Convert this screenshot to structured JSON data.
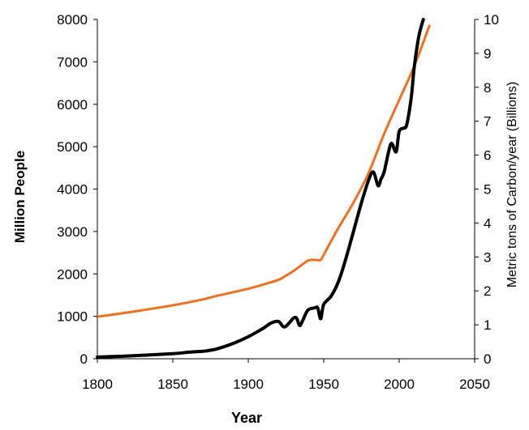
{
  "chart_data": {
    "type": "line",
    "title": "",
    "xlabel": "Year",
    "ylabel": "Million People",
    "y2label": "Metric tons of Carbon/year (Billions)",
    "xlim": [
      1800,
      2050
    ],
    "ylim": [
      0,
      8000
    ],
    "y2lim": [
      0,
      10
    ],
    "xticks": [
      "1800",
      "1850",
      "1900",
      "1950",
      "2000",
      "2050"
    ],
    "yticks": [
      "0",
      "1000",
      "2000",
      "3000",
      "4000",
      "5000",
      "6000",
      "7000",
      "8000"
    ],
    "y2ticks": [
      "0",
      "1",
      "2",
      "3",
      "4",
      "5",
      "6",
      "7",
      "8",
      "9",
      "10"
    ],
    "grid": false,
    "legend": "none",
    "series": [
      {
        "color": "#f07020",
        "axis": "left",
        "x": [
          1800,
          1820,
          1850,
          1870,
          1880,
          1900,
          1910,
          1920,
          1925,
          1930,
          1935,
          1940,
          1945,
          1948,
          1950,
          1955,
          1960,
          1970,
          1980,
          1990,
          2000,
          2010,
          2020
        ],
        "y": [
          990,
          1090,
          1260,
          1400,
          1490,
          1650,
          1750,
          1860,
          1960,
          2070,
          2200,
          2320,
          2330,
          2330,
          2450,
          2780,
          3100,
          3700,
          4400,
          5300,
          6100,
          6900,
          7850
        ]
      },
      {
        "color": "#000000",
        "axis": "right",
        "x": [
          1800,
          1820,
          1850,
          1860,
          1870,
          1875,
          1880,
          1890,
          1900,
          1910,
          1915,
          1920,
          1923,
          1925,
          1928,
          1930,
          1932,
          1934,
          1936,
          1938,
          1940,
          1944,
          1946,
          1948,
          1950,
          1955,
          1960,
          1965,
          1970,
          1975,
          1980,
          1983,
          1986,
          1988,
          1990,
          1993,
          1995,
          1998,
          2000,
          2003,
          2005,
          2008,
          2010,
          2013,
          2016
        ],
        "y": [
          0.05,
          0.08,
          0.15,
          0.19,
          0.22,
          0.25,
          0.3,
          0.45,
          0.65,
          0.9,
          1.05,
          1.1,
          0.95,
          0.96,
          1.1,
          1.2,
          1.2,
          0.98,
          1.12,
          1.32,
          1.45,
          1.5,
          1.5,
          1.18,
          1.6,
          1.85,
          2.3,
          3.0,
          3.8,
          4.6,
          5.3,
          5.5,
          5.1,
          5.3,
          5.5,
          6.1,
          6.35,
          6.1,
          6.7,
          6.8,
          6.9,
          7.7,
          8.6,
          9.5,
          10.0
        ]
      }
    ]
  }
}
